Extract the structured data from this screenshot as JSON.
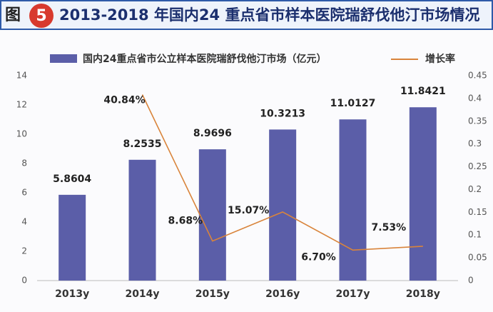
{
  "header": {
    "figure_label": "图",
    "figure_number": "5"
  },
  "chart_data": {
    "type": "bar-line",
    "title": "2013-2018 年国内24 重点省市样本医院瑞舒伐他汀市场情况",
    "categories": [
      "2013y",
      "2014y",
      "2015y",
      "2016y",
      "2017y",
      "2018y"
    ],
    "series": [
      {
        "name": "国内24重点省市公立样本医院瑞舒伐他汀市场（亿元）",
        "type": "bar",
        "color": "#5b5ea8",
        "values": [
          5.8604,
          8.2535,
          8.9696,
          10.3213,
          11.0127,
          11.8421
        ]
      },
      {
        "name": "增长率",
        "type": "line",
        "axis": "y2",
        "color": "#d9843b",
        "values": [
          null,
          0.4084,
          0.0868,
          0.1507,
          0.067,
          0.0753
        ],
        "value_labels": [
          null,
          "40.84%",
          "8.68%",
          "15.07%",
          "6.70%",
          "7.53%"
        ]
      }
    ],
    "ylim": [
      0,
      14
    ],
    "yticks": [
      0,
      2,
      4,
      6,
      8,
      10,
      12,
      14
    ],
    "y2lim": [
      0,
      0.45
    ],
    "y2ticks": [
      0,
      0.05,
      0.1,
      0.15,
      0.2,
      0.25,
      0.3,
      0.35,
      0.4,
      0.45
    ],
    "legend": "top"
  }
}
